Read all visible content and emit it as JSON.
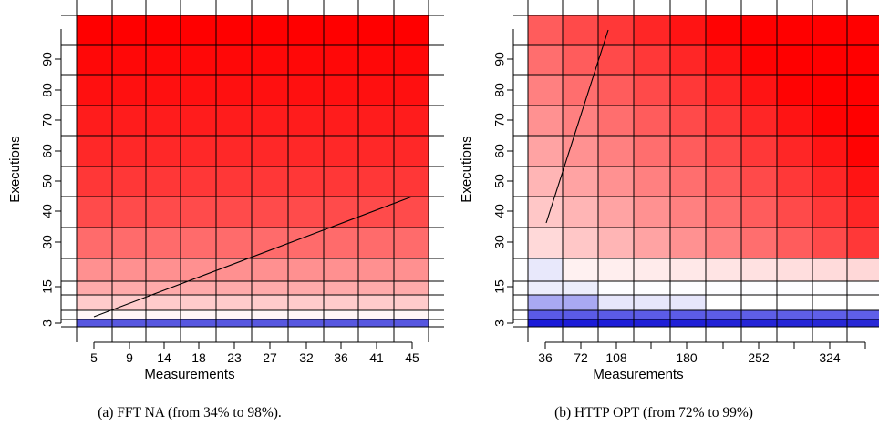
{
  "chart_data": [
    {
      "type": "heatmap",
      "caption": "(a)  FFT NA (from 34% to 98%).",
      "xlabel": "Measurements",
      "ylabel": "Executions",
      "x_ticks": [
        "5",
        "9",
        "14",
        "18",
        "23",
        "27",
        "32",
        "36",
        "41",
        "45"
      ],
      "y_ticks": [
        "3",
        "15",
        "30",
        "40",
        "50",
        "60",
        "70",
        "80",
        "90"
      ],
      "colors": {
        "high": "#ff0000",
        "mid": "#ffffff",
        "low": "#0000ff"
      },
      "bands_bottom_to_top": [
        {
          "executions_range": [
            3,
            5
          ],
          "fill": "#5757e0"
        },
        {
          "executions_range": [
            5,
            8
          ],
          "fill": "#fff6f6"
        },
        {
          "executions_range": [
            8,
            12
          ],
          "fill": "#ffcbcb"
        },
        {
          "executions_range": [
            12,
            17
          ],
          "fill": "#ffaaaa"
        },
        {
          "executions_range": [
            17,
            25
          ],
          "fill": "#ff9090"
        },
        {
          "executions_range": [
            25,
            35
          ],
          "fill": "#ff6b6b"
        },
        {
          "executions_range": [
            35,
            45
          ],
          "fill": "#ff4b4b"
        },
        {
          "executions_range": [
            45,
            55
          ],
          "fill": "#ff3737"
        },
        {
          "executions_range": [
            55,
            65
          ],
          "fill": "#ff2828"
        },
        {
          "executions_range": [
            65,
            75
          ],
          "fill": "#ff1c1c"
        },
        {
          "executions_range": [
            75,
            85
          ],
          "fill": "#ff1010"
        },
        {
          "executions_range": [
            85,
            95
          ],
          "fill": "#ff0808"
        },
        {
          "executions_range": [
            95,
            105
          ],
          "fill": "#ff0000"
        }
      ],
      "boundary_line": {
        "x": [
          5,
          45
        ],
        "y": [
          5,
          45
        ]
      }
    },
    {
      "type": "heatmap",
      "caption": "(b)  HTTP OPT (from 72% to 99%)",
      "xlabel": "Measurements",
      "ylabel": "Executions",
      "x_ticks": [
        "36",
        "72",
        "108",
        "180",
        "252",
        "324"
      ],
      "y_ticks": [
        "3",
        "15",
        "30",
        "40",
        "50",
        "60",
        "70",
        "80",
        "90"
      ],
      "colors": {
        "high": "#ff0000",
        "mid": "#ffffff",
        "low": "#0000ff"
      },
      "boundary_line": {
        "x": [
          36,
          108
        ],
        "y": [
          35,
          100
        ]
      }
    }
  ]
}
